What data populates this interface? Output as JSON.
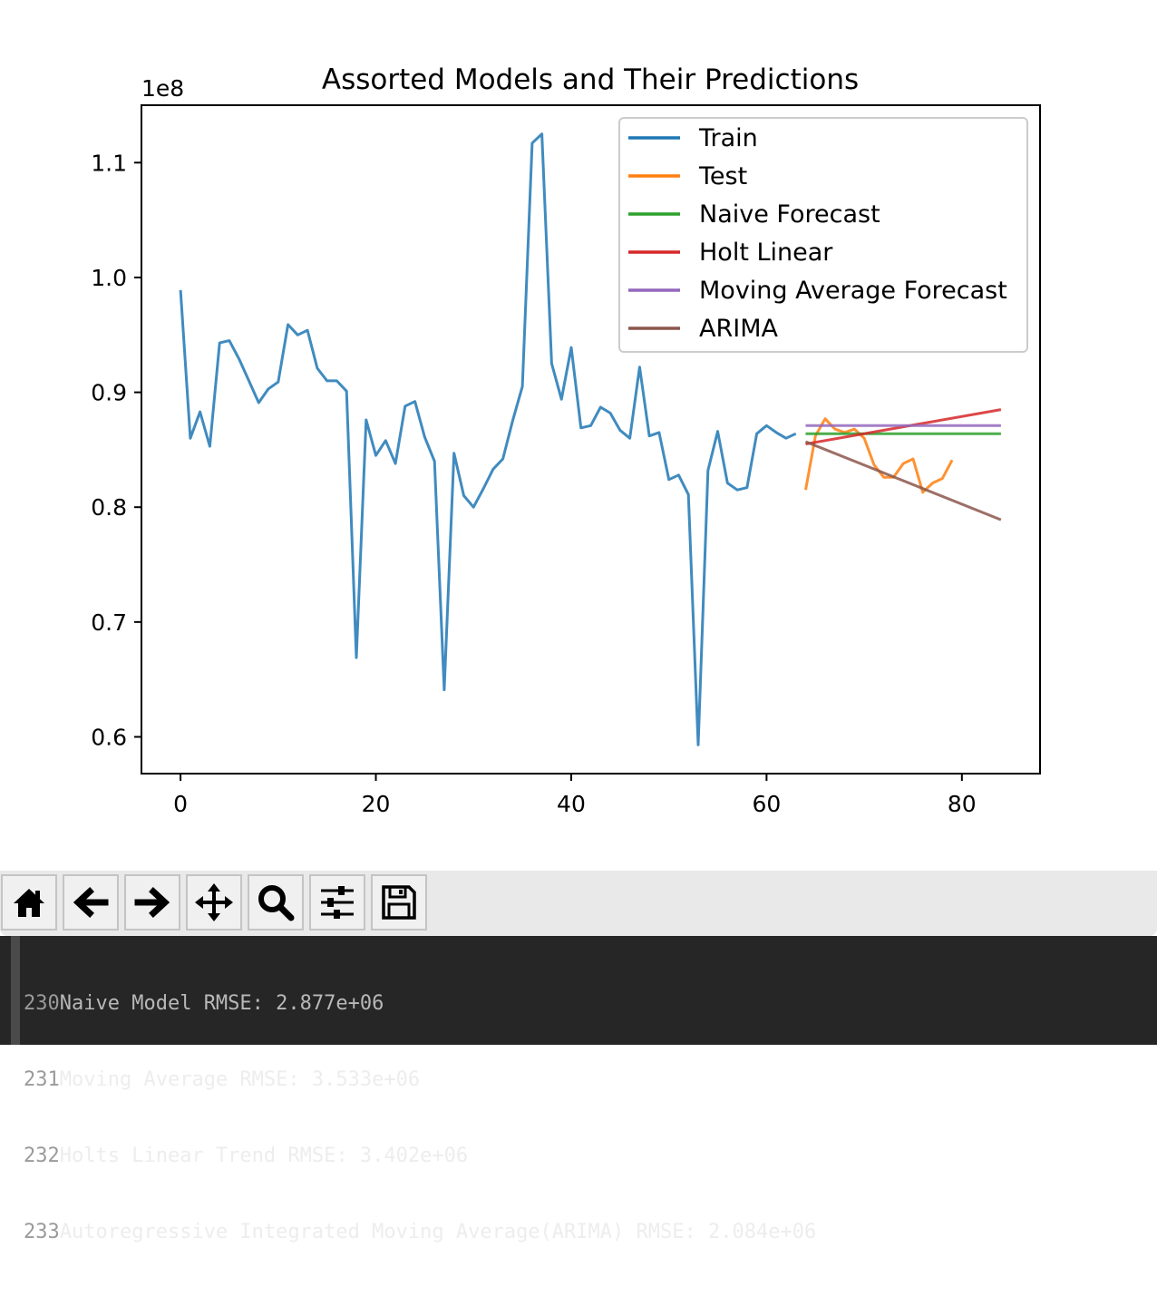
{
  "chart_data": {
    "type": "line",
    "title": "Assorted Models and Their Predictions",
    "xlabel": "",
    "ylabel": "",
    "y_offset_label": "1e8",
    "xlim": [
      -4,
      88
    ],
    "ylim": [
      0.568,
      1.15
    ],
    "x_ticks": [
      0,
      20,
      40,
      60,
      80
    ],
    "y_ticks": [
      0.6,
      0.7,
      0.8,
      0.9,
      1.0,
      1.1
    ],
    "y_tick_labels": [
      "0.6",
      "0.7",
      "0.8",
      "0.9",
      "1.0",
      "1.1"
    ],
    "grid": false,
    "legend_position": "top-right",
    "series": [
      {
        "name": "Train",
        "color": "#1f77b4",
        "x": [
          0,
          1,
          2,
          3,
          4,
          5,
          6,
          7,
          8,
          9,
          10,
          11,
          12,
          13,
          14,
          15,
          16,
          17,
          18,
          19,
          20,
          21,
          22,
          23,
          24,
          25,
          26,
          27,
          28,
          29,
          30,
          31,
          32,
          33,
          34,
          35,
          36,
          37,
          38,
          39,
          40,
          41,
          42,
          43,
          44,
          45,
          46,
          47,
          48,
          49,
          50,
          51,
          52,
          53,
          54,
          55,
          56,
          57,
          58,
          59,
          60,
          61,
          62,
          63
        ],
        "values": [
          0.989,
          0.86,
          0.883,
          0.853,
          0.943,
          0.945,
          0.929,
          0.91,
          0.891,
          0.903,
          0.909,
          0.959,
          0.95,
          0.954,
          0.921,
          0.91,
          0.91,
          0.901,
          0.669,
          0.876,
          0.845,
          0.858,
          0.838,
          0.888,
          0.892,
          0.861,
          0.84,
          0.641,
          0.847,
          0.81,
          0.8,
          0.816,
          0.833,
          0.842,
          0.875,
          0.905,
          1.117,
          1.125,
          0.925,
          0.894,
          0.939,
          0.869,
          0.871,
          0.887,
          0.882,
          0.867,
          0.86,
          0.922,
          0.862,
          0.865,
          0.824,
          0.828,
          0.811,
          0.593,
          0.832,
          0.866,
          0.821,
          0.815,
          0.817,
          0.864,
          0.871,
          0.865,
          0.86,
          0.864
        ]
      },
      {
        "name": "Test",
        "color": "#ff7f0e",
        "x": [
          64,
          65,
          66,
          67,
          68,
          69,
          70,
          71,
          72,
          73,
          74,
          75,
          76,
          77,
          78,
          79
        ],
        "values": [
          0.815,
          0.862,
          0.877,
          0.868,
          0.865,
          0.868,
          0.86,
          0.837,
          0.826,
          0.826,
          0.838,
          0.842,
          0.813,
          0.821,
          0.825,
          0.841
        ]
      },
      {
        "name": "Naive Forecast",
        "color": "#2ca02c",
        "x": [
          64,
          84
        ],
        "values": [
          0.864,
          0.864
        ]
      },
      {
        "name": "Holt Linear",
        "color": "#d62728",
        "x": [
          64,
          84
        ],
        "values": [
          0.855,
          0.885
        ]
      },
      {
        "name": "Moving Average Forecast",
        "color": "#9467bd",
        "x": [
          64,
          84
        ],
        "values": [
          0.871,
          0.871
        ]
      },
      {
        "name": "ARIMA",
        "color": "#8c564b",
        "x": [
          64,
          84
        ],
        "values": [
          0.857,
          0.789
        ]
      }
    ]
  },
  "toolbar": {
    "buttons": [
      {
        "name": "home-button",
        "icon": "home-icon"
      },
      {
        "name": "back-button",
        "icon": "arrow-left-icon"
      },
      {
        "name": "forward-button",
        "icon": "arrow-right-icon"
      },
      {
        "name": "pan-button",
        "icon": "move-icon"
      },
      {
        "name": "zoom-button",
        "icon": "magnifier-icon"
      },
      {
        "name": "configure-subplots-button",
        "icon": "sliders-icon"
      },
      {
        "name": "save-button",
        "icon": "floppy-disk-icon"
      }
    ]
  },
  "terminal": {
    "lines": [
      {
        "number": "230",
        "text": "Naive Model RMSE: 2.877e+06"
      },
      {
        "number": "231",
        "text": "Moving Average RMSE: 3.533e+06"
      },
      {
        "number": "232",
        "text": "Holts Linear Trend RMSE: 3.402e+06"
      },
      {
        "number": "233",
        "text": "Autoregressive Integrated Moving Average(ARIMA) RMSE: 2.084e+06"
      }
    ]
  }
}
